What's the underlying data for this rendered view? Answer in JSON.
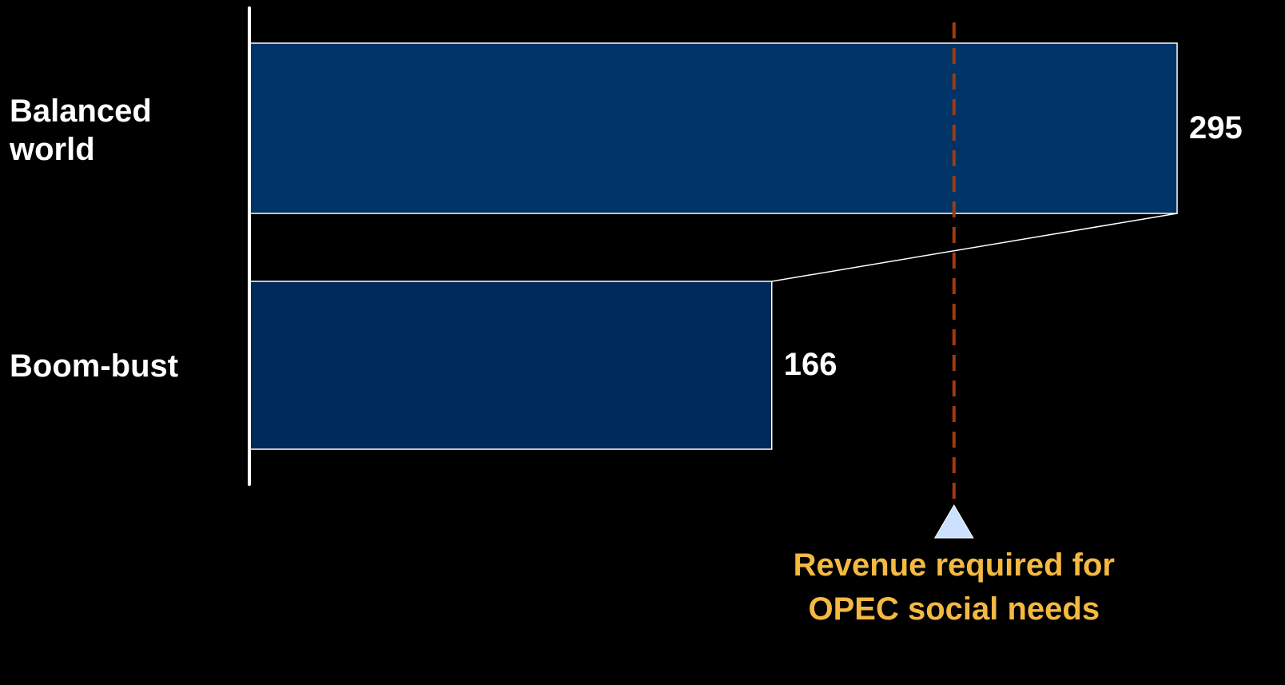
{
  "chart_data": {
    "type": "bar",
    "orientation": "horizontal",
    "categories": [
      "Balanced world",
      "Boom-bust"
    ],
    "values": [
      295,
      166
    ],
    "colors": [
      "#003366",
      "#00295c"
    ],
    "xlim": [
      0,
      295
    ],
    "reference_value": 224,
    "reference_color": "#a33a0c",
    "annotation": "Revenue required for OPEC social needs",
    "annotation_color": "#f5b942"
  }
}
